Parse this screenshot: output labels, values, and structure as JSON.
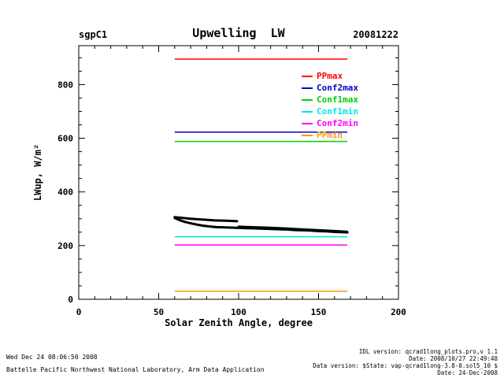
{
  "chart_data": {
    "type": "line",
    "site": "sgpC1",
    "title": "Upwelling  LW",
    "date_label": "20081222",
    "xlabel": "Solar Zenith Angle, degree",
    "ylabel": "LWup, W/m²",
    "xlim": [
      0,
      200
    ],
    "ylim": [
      0,
      945
    ],
    "xticks": [
      0,
      50,
      100,
      150,
      200
    ],
    "yticks": [
      0,
      200,
      400,
      600,
      800
    ],
    "x_minor_step": 10,
    "y_minor_step": 50,
    "grid": false,
    "legend_position": "inside-top-right",
    "axis_color": "#000000",
    "limit_lines": [
      {
        "name": "PPmax",
        "color": "#ff0000",
        "value": 895,
        "x_range": [
          60,
          168
        ]
      },
      {
        "name": "Conf2max",
        "color": "#0000cc",
        "value": 623,
        "x_range": [
          60,
          168
        ]
      },
      {
        "name": "Conf1max",
        "color": "#00d000",
        "value": 588,
        "x_range": [
          60,
          168
        ]
      },
      {
        "name": "Conf1min",
        "color": "#00e8e8",
        "value": 233,
        "x_range": [
          60,
          168
        ]
      },
      {
        "name": "Conf2min",
        "color": "#ff00ff",
        "value": 202,
        "x_range": [
          60,
          168
        ]
      },
      {
        "name": "PPmin",
        "color": "#ff9900",
        "value": 30,
        "x_range": [
          60,
          168
        ]
      }
    ],
    "data_series": [
      {
        "name": "lwup-upper-branch",
        "color": "#000000",
        "width": 3,
        "points": [
          [
            60,
            306
          ],
          [
            65,
            303
          ],
          [
            70,
            300
          ],
          [
            75,
            298
          ],
          [
            80,
            296
          ],
          [
            85,
            294
          ],
          [
            90,
            293
          ],
          [
            95,
            292
          ],
          [
            99,
            291
          ]
        ]
      },
      {
        "name": "lwup-main-trace",
        "color": "#000000",
        "width": 3,
        "points": [
          [
            60,
            303
          ],
          [
            63,
            295
          ],
          [
            66,
            289
          ],
          [
            70,
            283
          ],
          [
            74,
            278
          ],
          [
            78,
            274
          ],
          [
            82,
            271
          ],
          [
            86,
            269
          ],
          [
            90,
            268
          ],
          [
            95,
            267
          ],
          [
            100,
            266
          ],
          [
            105,
            265
          ],
          [
            110,
            264
          ],
          [
            115,
            263
          ],
          [
            120,
            262
          ],
          [
            125,
            261
          ],
          [
            130,
            260
          ],
          [
            135,
            258
          ],
          [
            140,
            257
          ],
          [
            145,
            256
          ],
          [
            150,
            254
          ],
          [
            155,
            253
          ],
          [
            160,
            251
          ],
          [
            165,
            250
          ],
          [
            168,
            249
          ]
        ]
      },
      {
        "name": "lwup-overlap-trace",
        "color": "#000000",
        "width": 2.5,
        "points": [
          [
            100,
            271
          ],
          [
            110,
            269
          ],
          [
            120,
            267
          ],
          [
            130,
            264
          ],
          [
            140,
            261
          ],
          [
            150,
            258
          ],
          [
            160,
            255
          ],
          [
            168,
            252
          ]
        ]
      }
    ]
  },
  "footer": {
    "left_lines": [
      "Wed Dec 24 08:06:50 2008",
      "Battelle Pacific Northwest National Laboratory, Arm Data Application"
    ],
    "right_lines": [
      "IDL version: qcrad1long_plots.pro,v 1.1",
      "Date: 2008/10/27 22:49:48",
      "Data version: $State: vap-qcrad1long-3.8-0.sol5_10 $",
      "Date: 24-Dec-2008"
    ]
  }
}
